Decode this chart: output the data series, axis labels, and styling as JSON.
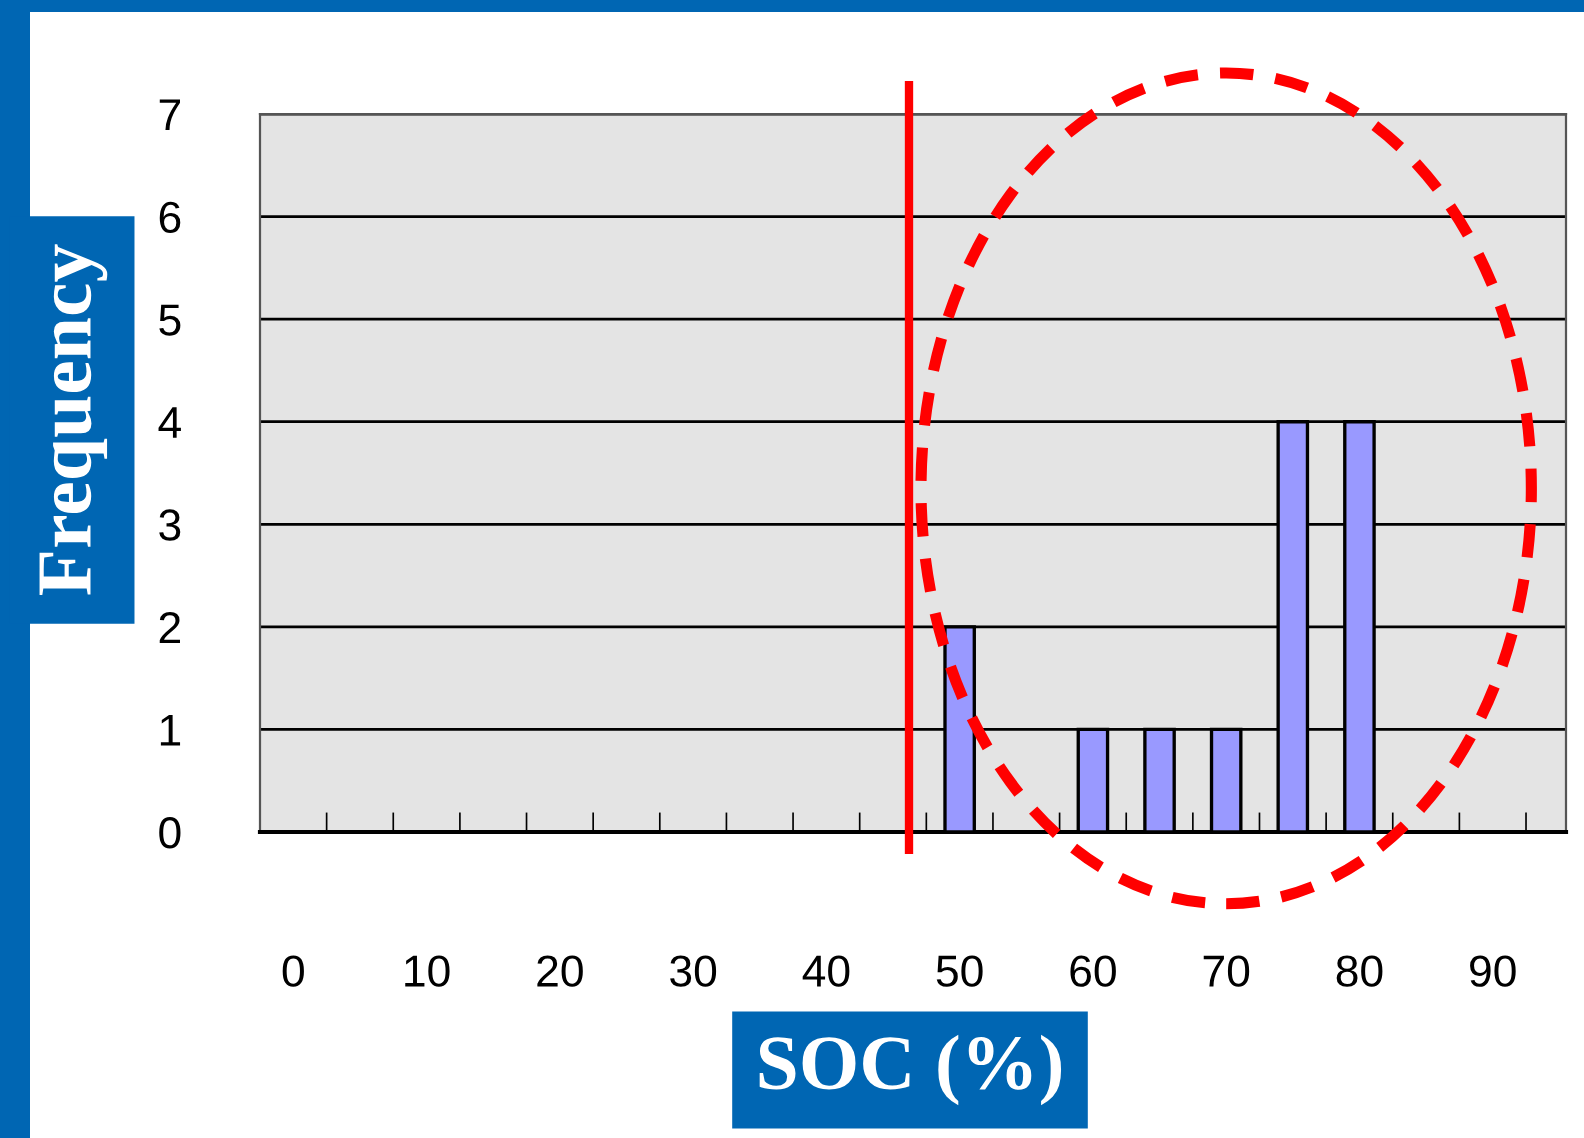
{
  "chart_data": {
    "type": "bar",
    "x": [
      0,
      5,
      10,
      15,
      20,
      25,
      30,
      35,
      40,
      45,
      50,
      55,
      60,
      65,
      70,
      75,
      80,
      85,
      90,
      95
    ],
    "series": [
      {
        "color": "#9999ff",
        "values": [
          0,
          0,
          0,
          0,
          0,
          0,
          0,
          0,
          0,
          0,
          2,
          0,
          1,
          1,
          1,
          4,
          4,
          0,
          0,
          0
        ]
      }
    ],
    "xlabel": "SOC (%)",
    "ylabel": "Frequency",
    "xlim": [
      -2.5,
      95.5
    ],
    "xticks": [
      0,
      10,
      20,
      30,
      40,
      50,
      60,
      70,
      80,
      90
    ],
    "ylim": [
      0,
      7
    ],
    "yticks": [
      0,
      1,
      2,
      3,
      4,
      5,
      6,
      7
    ],
    "grid": "y",
    "ref_lines": [
      {
        "axis": "x",
        "value": 46.2,
        "color": "#ff0000",
        "line_style": "solid"
      }
    ]
  }
}
